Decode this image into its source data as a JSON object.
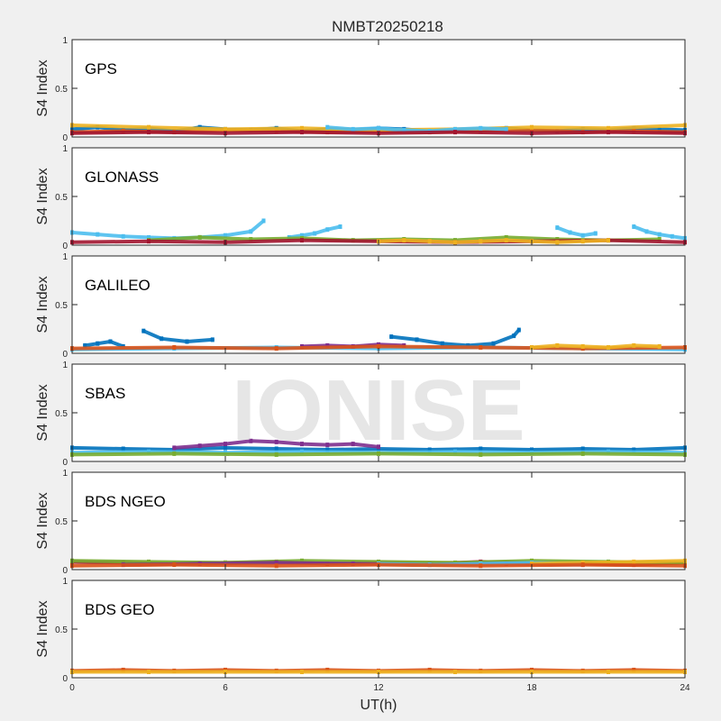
{
  "chart_data": {
    "type": "scatter",
    "title": "NMBT20250218",
    "watermark": "IONISE",
    "xlabel": "UT(h)",
    "ylabel": "S4 Index",
    "xlim": [
      0,
      24
    ],
    "ylim": [
      0,
      1
    ],
    "xticks": [
      "0",
      "6",
      "12",
      "18",
      "24"
    ],
    "yticks": [
      "0",
      "0.5",
      "1"
    ],
    "series_colors": [
      "#0072BD",
      "#D95319",
      "#EDB120",
      "#7E2F8E",
      "#77AC30",
      "#4DBEEE",
      "#A2142F"
    ],
    "panels": [
      {
        "name": "GPS",
        "series": [
          {
            "color": "#0072BD",
            "x": [
              0,
              1,
              2,
              3,
              4,
              5,
              6,
              7,
              8,
              9,
              10,
              11,
              12,
              13,
              14,
              15,
              16,
              17,
              18,
              19,
              20,
              21,
              22,
              23,
              24
            ],
            "y": [
              0.08,
              0.1,
              0.07,
              0.09,
              0.06,
              0.1,
              0.08,
              0.07,
              0.09,
              0.06,
              0.08,
              0.07,
              0.09,
              0.08,
              0.06,
              0.07,
              0.08,
              0.09,
              0.07,
              0.06,
              0.08,
              0.07,
              0.09,
              0.08,
              0.07
            ]
          },
          {
            "color": "#D95319",
            "x": [
              0,
              2,
              4,
              6,
              8,
              10,
              12,
              14,
              16,
              18,
              20,
              22,
              24
            ],
            "y": [
              0.05,
              0.06,
              0.05,
              0.07,
              0.06,
              0.05,
              0.06,
              0.05,
              0.06,
              0.07,
              0.05,
              0.06,
              0.05
            ]
          },
          {
            "color": "#EDB120",
            "x": [
              0,
              3,
              6,
              9,
              12,
              15,
              18,
              21,
              24
            ],
            "y": [
              0.12,
              0.1,
              0.08,
              0.09,
              0.07,
              0.08,
              0.1,
              0.09,
              0.12
            ]
          },
          {
            "color": "#4DBEEE",
            "x": [
              10,
              11,
              12,
              13,
              14,
              15,
              16,
              17
            ],
            "y": [
              0.1,
              0.08,
              0.09,
              0.07,
              0.06,
              0.08,
              0.09,
              0.08
            ]
          },
          {
            "color": "#A2142F",
            "x": [
              0,
              3,
              6,
              9,
              12,
              15,
              18,
              21,
              24
            ],
            "y": [
              0.04,
              0.05,
              0.04,
              0.05,
              0.04,
              0.05,
              0.04,
              0.05,
              0.04
            ]
          }
        ]
      },
      {
        "name": "GLONASS",
        "series": [
          {
            "color": "#4DBEEE",
            "x": [
              0,
              1,
              2,
              3,
              4,
              5,
              6,
              7,
              7.5
            ],
            "y": [
              0.13,
              0.11,
              0.09,
              0.08,
              0.07,
              0.08,
              0.1,
              0.14,
              0.25
            ]
          },
          {
            "color": "#4DBEEE",
            "x": [
              8.5,
              9,
              9.5,
              10,
              10.5
            ],
            "y": [
              0.08,
              0.1,
              0.12,
              0.16,
              0.19
            ]
          },
          {
            "color": "#4DBEEE",
            "x": [
              19,
              19.5,
              20,
              20.5
            ],
            "y": [
              0.18,
              0.13,
              0.1,
              0.12
            ]
          },
          {
            "color": "#4DBEEE",
            "x": [
              22,
              22.5,
              23,
              23.5,
              24
            ],
            "y": [
              0.19,
              0.14,
              0.11,
              0.09,
              0.07
            ]
          },
          {
            "color": "#77AC30",
            "x": [
              3,
              5,
              7,
              9,
              11,
              13,
              15,
              17,
              19,
              21,
              23
            ],
            "y": [
              0.05,
              0.08,
              0.06,
              0.07,
              0.05,
              0.06,
              0.05,
              0.08,
              0.06,
              0.05,
              0.06
            ]
          },
          {
            "color": "#A2142F",
            "x": [
              0,
              3,
              6,
              9,
              12,
              15,
              18,
              21,
              24
            ],
            "y": [
              0.03,
              0.04,
              0.03,
              0.05,
              0.04,
              0.03,
              0.04,
              0.05,
              0.03
            ]
          },
          {
            "color": "#EDB120",
            "x": [
              12,
              13,
              14,
              15,
              16,
              17,
              18,
              19,
              20,
              21
            ],
            "y": [
              0.04,
              0.05,
              0.04,
              0.03,
              0.04,
              0.05,
              0.04,
              0.03,
              0.04,
              0.05
            ]
          }
        ]
      },
      {
        "name": "GALILEO",
        "series": [
          {
            "color": "#0072BD",
            "x": [
              0.5,
              1,
              1.5,
              2
            ],
            "y": [
              0.08,
              0.1,
              0.12,
              0.07
            ]
          },
          {
            "color": "#0072BD",
            "x": [
              2.8,
              3.5,
              4.5,
              5.5
            ],
            "y": [
              0.23,
              0.15,
              0.12,
              0.14
            ]
          },
          {
            "color": "#0072BD",
            "x": [
              12.5,
              13.5,
              14.5,
              15.5,
              16.5,
              17.3,
              17.5
            ],
            "y": [
              0.17,
              0.14,
              0.1,
              0.08,
              0.1,
              0.18,
              0.24
            ]
          },
          {
            "color": "#4DBEEE",
            "x": [
              0,
              4,
              8,
              12,
              16,
              20,
              24
            ],
            "y": [
              0.04,
              0.05,
              0.06,
              0.05,
              0.06,
              0.05,
              0.04
            ]
          },
          {
            "color": "#7E2F8E",
            "x": [
              9,
              10,
              11,
              12,
              13
            ],
            "y": [
              0.07,
              0.08,
              0.07,
              0.09,
              0.08
            ]
          },
          {
            "color": "#D95319",
            "x": [
              0,
              4,
              8,
              12,
              16,
              20,
              24
            ],
            "y": [
              0.05,
              0.06,
              0.05,
              0.07,
              0.06,
              0.05,
              0.06
            ]
          },
          {
            "color": "#EDB120",
            "x": [
              18,
              19,
              20,
              21,
              22,
              23
            ],
            "y": [
              0.06,
              0.08,
              0.07,
              0.06,
              0.08,
              0.07
            ]
          }
        ]
      },
      {
        "name": "SBAS",
        "series": [
          {
            "color": "#0072BD",
            "x": [
              0,
              2,
              4,
              6,
              8,
              10,
              12,
              14,
              16,
              18,
              20,
              22,
              24
            ],
            "y": [
              0.14,
              0.13,
              0.12,
              0.14,
              0.13,
              0.12,
              0.13,
              0.12,
              0.13,
              0.12,
              0.13,
              0.12,
              0.14
            ]
          },
          {
            "color": "#7E2F8E",
            "x": [
              4,
              5,
              6,
              7,
              8,
              9,
              10,
              11,
              12
            ],
            "y": [
              0.14,
              0.16,
              0.18,
              0.21,
              0.2,
              0.18,
              0.17,
              0.18,
              0.15
            ]
          },
          {
            "color": "#4DBEEE",
            "x": [
              0,
              3,
              6,
              9,
              12,
              15,
              18,
              21,
              24
            ],
            "y": [
              0.09,
              0.1,
              0.09,
              0.1,
              0.09,
              0.1,
              0.09,
              0.1,
              0.09
            ]
          },
          {
            "color": "#77AC30",
            "x": [
              0,
              4,
              8,
              12,
              16,
              20,
              24
            ],
            "y": [
              0.07,
              0.08,
              0.07,
              0.08,
              0.07,
              0.08,
              0.07
            ]
          }
        ]
      },
      {
        "name": "BDS NGEO",
        "series": [
          {
            "color": "#A2142F",
            "x": [
              0,
              2,
              4,
              6,
              8,
              10,
              12,
              14,
              16,
              18,
              20,
              22,
              24
            ],
            "y": [
              0.08,
              0.07,
              0.06,
              0.07,
              0.08,
              0.06,
              0.07,
              0.06,
              0.08,
              0.07,
              0.06,
              0.05,
              0.07
            ]
          },
          {
            "color": "#77AC30",
            "x": [
              0,
              3,
              6,
              9,
              12,
              15,
              18,
              21,
              24
            ],
            "y": [
              0.09,
              0.08,
              0.07,
              0.09,
              0.08,
              0.07,
              0.09,
              0.08,
              0.07
            ]
          },
          {
            "color": "#7E2F8E",
            "x": [
              2,
              5,
              8,
              11,
              14,
              17,
              20
            ],
            "y": [
              0.05,
              0.06,
              0.07,
              0.06,
              0.05,
              0.06,
              0.05
            ]
          },
          {
            "color": "#4DBEEE",
            "x": [
              12,
              14,
              16,
              18,
              20
            ],
            "y": [
              0.06,
              0.05,
              0.06,
              0.07,
              0.06
            ]
          },
          {
            "color": "#EDB120",
            "x": [
              18,
              20,
              22,
              24
            ],
            "y": [
              0.06,
              0.07,
              0.08,
              0.09
            ]
          },
          {
            "color": "#D95319",
            "x": [
              0,
              4,
              8,
              12,
              16,
              20,
              24
            ],
            "y": [
              0.04,
              0.05,
              0.04,
              0.05,
              0.04,
              0.05,
              0.04
            ]
          }
        ]
      },
      {
        "name": "BDS GEO",
        "series": [
          {
            "color": "#D95319",
            "x": [
              0,
              2,
              4,
              6,
              8,
              10,
              12,
              14,
              16,
              18,
              20,
              22,
              24
            ],
            "y": [
              0.07,
              0.08,
              0.07,
              0.08,
              0.07,
              0.08,
              0.07,
              0.08,
              0.07,
              0.08,
              0.07,
              0.08,
              0.07
            ]
          },
          {
            "color": "#EDB120",
            "x": [
              0,
              3,
              6,
              9,
              12,
              15,
              18,
              21,
              24
            ],
            "y": [
              0.06,
              0.06,
              0.06,
              0.06,
              0.06,
              0.06,
              0.06,
              0.06,
              0.06
            ]
          }
        ]
      }
    ]
  }
}
